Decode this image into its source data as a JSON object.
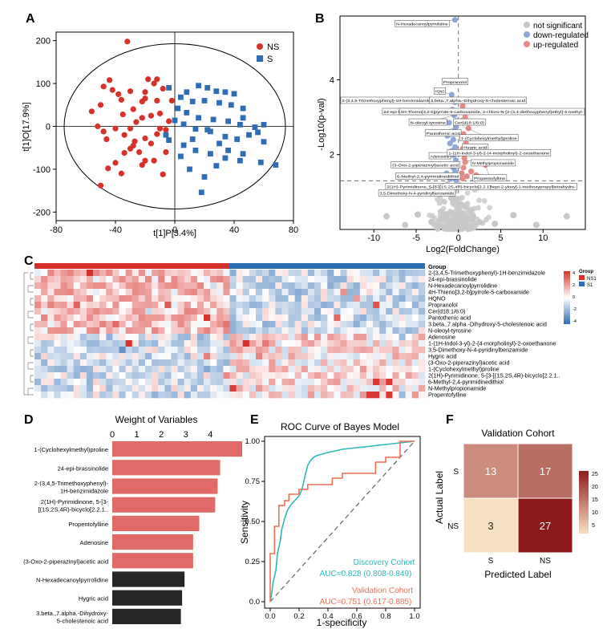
{
  "colors": {
    "ns_red": "#d7312b",
    "s_blue": "#2e6db4",
    "grey": "#c8c8c8",
    "down": "#8fa8d8",
    "up": "#e88b86",
    "bar_red": "#e06a65",
    "bar_black": "#262626",
    "teal": "#2db7b7",
    "orange_red": "#ef6e55",
    "cm_low": "#f7dfc2",
    "cm_high": "#8e1b1b"
  },
  "panels": {
    "A": "A",
    "B": "B",
    "C": "C",
    "D": "D",
    "E": "E",
    "F": "F"
  },
  "chart_data": [
    {
      "id": "A",
      "type": "scatter",
      "xlabel": "t[1]P[3.4%]",
      "ylabel": "t[1]O[17.9%]",
      "xlim": [
        -80,
        80
      ],
      "ylim": [
        -220,
        220
      ],
      "xticks": [
        "-80",
        "-40",
        "0",
        "40",
        "80"
      ],
      "yticks": [
        "-200",
        "-100",
        "0",
        "100",
        "200"
      ],
      "legend": [
        {
          "name": "NS",
          "symbol": "●"
        },
        {
          "name": "S",
          "symbol": "■"
        }
      ],
      "series": [
        {
          "name": "NS",
          "points": [
            [
              -32,
              198
            ],
            [
              -44,
              108
            ],
            [
              -48,
              93
            ],
            [
              -42,
              85
            ],
            [
              -38,
              75
            ],
            [
              -36,
              62
            ],
            [
              -30,
              82
            ],
            [
              -20,
              80
            ],
            [
              -14,
              100
            ],
            [
              -18,
              110
            ],
            [
              -12,
              110
            ],
            [
              -8,
              88
            ],
            [
              -12,
              60
            ],
            [
              -22,
              58
            ],
            [
              -28,
              40
            ],
            [
              -35,
              28
            ],
            [
              -50,
              50
            ],
            [
              -56,
              35
            ],
            [
              -52,
              0
            ],
            [
              -48,
              -12
            ],
            [
              -40,
              -5
            ],
            [
              -34,
              -20
            ],
            [
              -30,
              -5
            ],
            [
              -26,
              10
            ],
            [
              -22,
              20
            ],
            [
              -16,
              25
            ],
            [
              -10,
              30
            ],
            [
              -4,
              12
            ],
            [
              -6,
              -8
            ],
            [
              -12,
              -18
            ],
            [
              -20,
              -28
            ],
            [
              -28,
              -45
            ],
            [
              -24,
              -60
            ],
            [
              -20,
              -80
            ],
            [
              -22,
              -90
            ],
            [
              -34,
              -62
            ],
            [
              -40,
              -85
            ],
            [
              -45,
              -98
            ],
            [
              -50,
              -138
            ],
            [
              -8,
              -112
            ],
            [
              -14,
              -80
            ],
            [
              -6,
              -60
            ],
            [
              -30,
              -52
            ],
            [
              -16,
              -40
            ],
            [
              -46,
              -30
            ],
            [
              -36,
              -110
            ],
            [
              -27,
              -35
            ],
            [
              -20,
              65
            ],
            [
              -2,
              60
            ],
            [
              -10,
              -5
            ]
          ]
        },
        {
          "name": "S",
          "points": [
            [
              -4,
              90
            ],
            [
              8,
              80
            ],
            [
              16,
              95
            ],
            [
              22,
              90
            ],
            [
              28,
              82
            ],
            [
              34,
              80
            ],
            [
              40,
              76
            ],
            [
              4,
              68
            ],
            [
              12,
              58
            ],
            [
              20,
              60
            ],
            [
              30,
              55
            ],
            [
              38,
              50
            ],
            [
              46,
              42
            ],
            [
              2,
              42
            ],
            [
              8,
              32
            ],
            [
              16,
              20
            ],
            [
              26,
              16
            ],
            [
              36,
              12
            ],
            [
              44,
              4
            ],
            [
              54,
              -2
            ],
            [
              0,
              14
            ],
            [
              6,
              5
            ],
            [
              14,
              -6
            ],
            [
              24,
              -12
            ],
            [
              34,
              -24
            ],
            [
              42,
              -30
            ],
            [
              50,
              -20
            ],
            [
              60,
              -36
            ],
            [
              68,
              -90
            ],
            [
              -4,
              -32
            ],
            [
              6,
              -44
            ],
            [
              14,
              -56
            ],
            [
              24,
              -64
            ],
            [
              34,
              -74
            ],
            [
              44,
              -80
            ],
            [
              58,
              -84
            ],
            [
              10,
              -100
            ],
            [
              20,
              -118
            ],
            [
              28,
              -92
            ],
            [
              36,
              -56
            ],
            [
              46,
              -64
            ],
            [
              56,
              -14
            ],
            [
              22,
              -8
            ],
            [
              12,
              -30
            ],
            [
              30,
              -40
            ],
            [
              4,
              -70
            ],
            [
              18,
              -154
            ],
            [
              46,
              20
            ],
            [
              60,
              4
            ],
            [
              -6,
              -20
            ]
          ]
        }
      ]
    },
    {
      "id": "B",
      "type": "scatter",
      "xlabel": "Log2(FoldChange)",
      "ylabel": "-Log10(p-val)",
      "xlim": [
        -14,
        15
      ],
      "ylim": [
        0,
        5.7
      ],
      "xticks": [
        "-10",
        "-5",
        "0",
        "5",
        "10"
      ],
      "yticks": [
        "2",
        "4"
      ],
      "threshold": 1.3,
      "legend": [
        "not significant",
        "down-regulated",
        "up-regulated"
      ],
      "down_points": [
        [
          -0.4,
          5.6
        ],
        [
          -0.8,
          3.6
        ],
        [
          -0.4,
          3.4
        ],
        [
          -0.7,
          3.2
        ],
        [
          -0.5,
          3.05
        ],
        [
          -1.1,
          2.85
        ],
        [
          -0.3,
          2.75
        ],
        [
          -0.4,
          2.65
        ],
        [
          -1.3,
          2.5
        ],
        [
          -0.6,
          2.4
        ],
        [
          -1.0,
          2.3
        ],
        [
          -0.4,
          2.2
        ],
        [
          -0.8,
          2.1
        ],
        [
          -0.5,
          2.0
        ],
        [
          -1.2,
          1.95
        ],
        [
          -0.3,
          1.85
        ],
        [
          -0.9,
          1.75
        ],
        [
          -0.6,
          1.65
        ],
        [
          -0.4,
          1.55
        ],
        [
          -1.4,
          1.5
        ],
        [
          -0.7,
          1.45
        ],
        [
          -0.5,
          1.4
        ],
        [
          -1.0,
          1.35
        ],
        [
          -0.3,
          1.32
        ],
        [
          -1.8,
          2.6
        ],
        [
          -0.2,
          2.9
        ],
        [
          -0.9,
          2.55
        ],
        [
          -0.6,
          2.0
        ]
      ],
      "up_points": [
        [
          0.5,
          3.3
        ],
        [
          0.8,
          3.0
        ],
        [
          0.4,
          2.9
        ],
        [
          1.2,
          2.7
        ],
        [
          0.6,
          2.55
        ],
        [
          0.4,
          2.45
        ],
        [
          0.9,
          2.3
        ],
        [
          0.5,
          2.15
        ],
        [
          1.3,
          2.05
        ],
        [
          0.7,
          1.9
        ],
        [
          3.2,
          1.72
        ],
        [
          0.6,
          1.65
        ],
        [
          0.4,
          1.5
        ],
        [
          1.0,
          1.42
        ],
        [
          0.5,
          1.36
        ],
        [
          1.5,
          1.55
        ],
        [
          2.1,
          1.45
        ],
        [
          0.8,
          1.8
        ]
      ],
      "labels": [
        {
          "text": "N-Hexadecanoylpyrrolidine",
          "x": -0.4,
          "y": 5.6,
          "lx": -4.3,
          "ly": 5.5
        },
        {
          "text": "Propranolol",
          "x": -0.3,
          "y": 3.95,
          "lx": -0.4,
          "ly": 3.95
        },
        {
          "text": "HQNO",
          "x": -0.8,
          "y": 3.6,
          "lx": -2.2,
          "ly": 3.7
        },
        {
          "text": "2-(3,4,5-Trimethoxyphenyl)-1H-benzimidazole",
          "x": -0.4,
          "y": 3.4,
          "lx": -9.1,
          "ly": 3.45
        },
        {
          "text": "3.beta.,7.alpha.-Dihydroxy-5-cholestenoic acid",
          "x": -0.2,
          "y": 3.4,
          "lx": 2.3,
          "ly": 3.45
        },
        {
          "text": "24-epi-brassinolide",
          "x": -0.7,
          "y": 3.2,
          "lx": -6.5,
          "ly": 3.15
        },
        {
          "text": "4H-Thieno[3,2-b]pyrrole-5-carboxamide, 2-chloro-N-[2-(3,4-diethoxyphenyl)ethyl]-4-methyl-",
          "x": -0.4,
          "y": 3.2,
          "lx": 4.8,
          "ly": 3.15
        },
        {
          "text": "N-oleoyl-tyrosine",
          "x": -0.5,
          "y": 3.05,
          "lx": -3.6,
          "ly": 2.87
        },
        {
          "text": "Cer(d18:1/6:0)",
          "x": -0.3,
          "y": 2.95,
          "lx": 1.3,
          "ly": 2.87
        },
        {
          "text": "Pantothenic acid",
          "x": -0.3,
          "y": 2.75,
          "lx": -1.8,
          "ly": 2.58
        },
        {
          "text": "1-(Cyclohexylmethyl)proline",
          "x": 0.5,
          "y": 2.75,
          "lx": 3.6,
          "ly": 2.45
        },
        {
          "text": "Hygric acid",
          "x": 0.4,
          "y": 2.3,
          "lx": 2.0,
          "ly": 2.2
        },
        {
          "text": "Adenosine",
          "x": -0.3,
          "y": 1.9,
          "lx": -2.2,
          "ly": 1.97
        },
        {
          "text": "1-(1H-Indol-3-yl)-2-(4-morpholinyl)-2-oxoethanone",
          "x": 0.5,
          "y": 2.0,
          "lx": 4.8,
          "ly": 2.05
        },
        {
          "text": "N-Methylpropionamide",
          "x": 0.6,
          "y": 1.85,
          "lx": 4.1,
          "ly": 1.78
        },
        {
          "text": "(3-Oxo-2-piperazinyl)acetic acid",
          "x": -0.4,
          "y": 1.7,
          "lx": -3.9,
          "ly": 1.73
        },
        {
          "text": "6-Methyl-2,4-pyrimidinedithiol",
          "x": -0.3,
          "y": 1.45,
          "lx": -3.6,
          "ly": 1.43
        },
        {
          "text": "Propentofylline",
          "x": 3.2,
          "y": 1.72,
          "lx": 3.7,
          "ly": 1.38
        },
        {
          "text": "2(1H)-Pyrimidinone, 5-[3-[(1S,2S,4R)-bicyclo[2.2.1]hept-2-yloxy]-1-methoxypropyl]tetrahydro-",
          "x": 0.4,
          "y": 1.5,
          "lx": 2.7,
          "ly": 1.15
        },
        {
          "text": "3,5-Dimethoxy-N-4-pyridinylbenzamide",
          "x": -0.2,
          "y": 1.34,
          "lx": -4.9,
          "ly": 0.98
        }
      ]
    },
    {
      "id": "C",
      "type": "heatmap",
      "legend_title": "Group",
      "groups": [
        "NS1",
        "S1"
      ],
      "scale_ticks": [
        "4",
        "2",
        "0",
        "-2",
        "-4"
      ],
      "rows": [
        "2-(3,4,5-Trimethoxyphenyl)-1H-benzimidazole",
        "24-epi-brassinolide",
        "N-Hexadecanoylpyrrolidine",
        "4H-Thieno[3,2-b]pyrrole-5-carboxamide",
        "HQNO",
        "Propranolol",
        "Cer(d18:1/6:0)",
        "Pantothenic acid",
        "3.beta.,7.alpha.-Dihydroxy-5-cholestenoic acid",
        "N-oleoyl-tyrosine",
        "Adenosine",
        "1-(1H-Indol-3-yl)-2-(4-morpholinyl)-2-oxoethanone",
        "3,5-Dimethoxy-N-4-pyridinylbenzamide",
        "Hygric acid",
        "(3-Oxo-2-piperazinyl)acetic acid",
        "1-(Cyclohexylmethyl)proline",
        "2(1H)-Pyrimidinone, 5-[3-[(1S,2S,4R)-bicyclo[2.2.1..",
        "6-Methyl-2,4-pyrimidinedithiol",
        "N-Methylpropionamide",
        "Propentofylline"
      ]
    },
    {
      "id": "D",
      "type": "bar",
      "title": "Weight of Variables",
      "xlim": [
        0,
        5.3
      ],
      "xticks": [
        "0",
        "1",
        "2",
        "3",
        "4"
      ],
      "categories": [
        "1-(Cyclohexylmethyl)proline",
        "24-epi-brassinolide",
        "2-(3,4,5-Trimethoxyphenyl)-1H-benzimidazole",
        "2(1H)-Pyrimidinone, 5-[3-[(1S,2S,4R)-bicyclo[2.2.1..",
        "Propentofylline",
        "Adenosine",
        "(3-Oxo-2-piperazinyl)acetic acid",
        "N-Hexadecanoylpyrrolidine",
        "Hygric acid",
        "3.beta.,7.alpha.-Dihydroxy-5-cholestenoic acid"
      ],
      "label_lines": [
        [
          "1-(Cyclohexylmethyl)proline"
        ],
        [
          "24-epi-brassinolide"
        ],
        [
          "2-(3,4,5-Trimethoxyphenyl)-",
          "1H-benzimidazole"
        ],
        [
          "2(1H)-Pyrimidinone, 5-[3-",
          "[(1S,2S,4R)-bicyclo[2.2.1.."
        ],
        [
          "Propentofylline"
        ],
        [
          "Adenosine"
        ],
        [
          "(3-Oxo-2-piperazinyl)acetic acid"
        ],
        [
          "N-Hexadecanoylpyrrolidine"
        ],
        [
          "Hygric acid"
        ],
        [
          "3.beta.,7.alpha.-Dihydroxy-",
          "5-cholestenoic acid"
        ]
      ],
      "values": [
        5.3,
        4.4,
        4.3,
        4.2,
        3.55,
        3.3,
        3.3,
        2.95,
        2.85,
        2.8
      ],
      "highlight": [
        "red",
        "red",
        "red",
        "red",
        "red",
        "red",
        "red",
        "black",
        "black",
        "black"
      ]
    },
    {
      "id": "E",
      "type": "line",
      "title": "ROC Curve of Bayes Model",
      "xlabel": "1-specificity",
      "ylabel": "Sensitivity",
      "xlim": [
        0,
        1
      ],
      "ylim": [
        0,
        1
      ],
      "xticks": [
        "0.0",
        "0.2",
        "0.4",
        "0.6",
        "0.8",
        "1.0"
      ],
      "yticks": [
        "0.0",
        "0.25",
        "0.50",
        "0.75",
        "1.00"
      ],
      "series": [
        {
          "name": "Discovery Cohort",
          "auc": "AUC=0.828 (0.808-0.849)",
          "x": [
            0,
            0.01,
            0.02,
            0.04,
            0.05,
            0.07,
            0.08,
            0.1,
            0.12,
            0.14,
            0.16,
            0.18,
            0.2,
            0.22,
            0.24,
            0.26,
            0.28,
            0.3,
            0.32,
            0.36,
            0.4,
            0.45,
            0.5,
            0.55,
            0.6,
            0.65,
            0.7,
            0.75,
            0.8,
            0.85,
            0.9,
            0.95,
            1.0
          ],
          "y": [
            0,
            0.05,
            0.12,
            0.2,
            0.3,
            0.38,
            0.45,
            0.52,
            0.57,
            0.6,
            0.62,
            0.64,
            0.66,
            0.7,
            0.78,
            0.85,
            0.88,
            0.9,
            0.91,
            0.92,
            0.93,
            0.94,
            0.95,
            0.955,
            0.96,
            0.965,
            0.97,
            0.975,
            0.98,
            0.985,
            0.99,
            0.995,
            1.0
          ]
        },
        {
          "name": "Validation Cohort",
          "auc": "AUC=0.751 (0.617-0.885)",
          "x": [
            0,
            0,
            0.03,
            0.03,
            0.06,
            0.06,
            0.1,
            0.1,
            0.13,
            0.13,
            0.2,
            0.2,
            0.26,
            0.26,
            0.43,
            0.43,
            0.5,
            0.5,
            0.73,
            0.73,
            0.8,
            0.8,
            0.9,
            0.9,
            1.0
          ],
          "y": [
            0,
            0.3,
            0.3,
            0.47,
            0.47,
            0.6,
            0.6,
            0.63,
            0.63,
            0.67,
            0.67,
            0.7,
            0.7,
            0.73,
            0.73,
            0.77,
            0.77,
            0.8,
            0.8,
            0.87,
            0.87,
            0.9,
            0.9,
            1.0,
            1.0
          ]
        }
      ]
    },
    {
      "id": "F",
      "type": "heatmap",
      "title": "Validation Cohort",
      "xlabel": "Predicted Label",
      "ylabel": "Actual Label",
      "x_categories": [
        "S",
        "NS"
      ],
      "y_categories": [
        "S",
        "NS"
      ],
      "matrix": [
        [
          13,
          17
        ],
        [
          3,
          27
        ]
      ],
      "scale_ticks": [
        "25",
        "20",
        "15",
        "10",
        "5"
      ],
      "scale_range": [
        3,
        27
      ]
    }
  ]
}
